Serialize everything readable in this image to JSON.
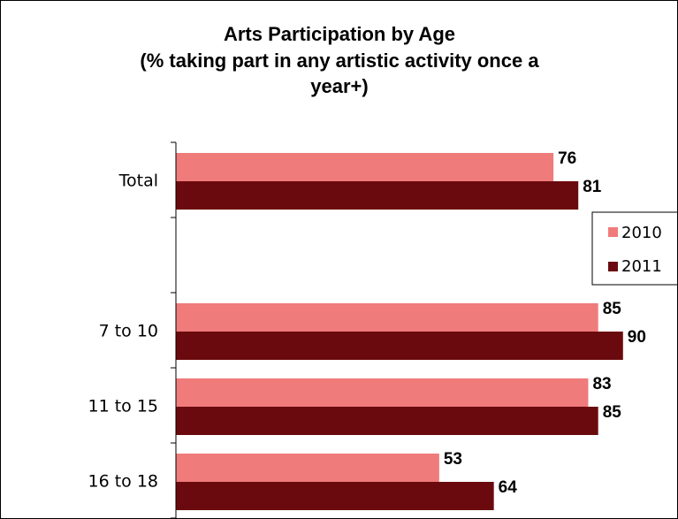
{
  "chart_data": {
    "type": "bar",
    "orientation": "horizontal",
    "title": "Arts Participation by Age",
    "subtitle_lines": [
      "(% taking part in any artistic activity once a",
      "year+)"
    ],
    "categories": [
      "Total",
      "",
      "7 to 10",
      "11 to 15",
      "16 to 18"
    ],
    "series": [
      {
        "name": "2010",
        "color": "#f07b7b",
        "values": [
          76,
          null,
          85,
          83,
          53
        ]
      },
      {
        "name": "2011",
        "color": "#6b0a0e",
        "values": [
          81,
          null,
          90,
          85,
          64
        ]
      }
    ],
    "xlim": [
      0,
      100
    ],
    "legend_position": "right",
    "grid": false
  }
}
